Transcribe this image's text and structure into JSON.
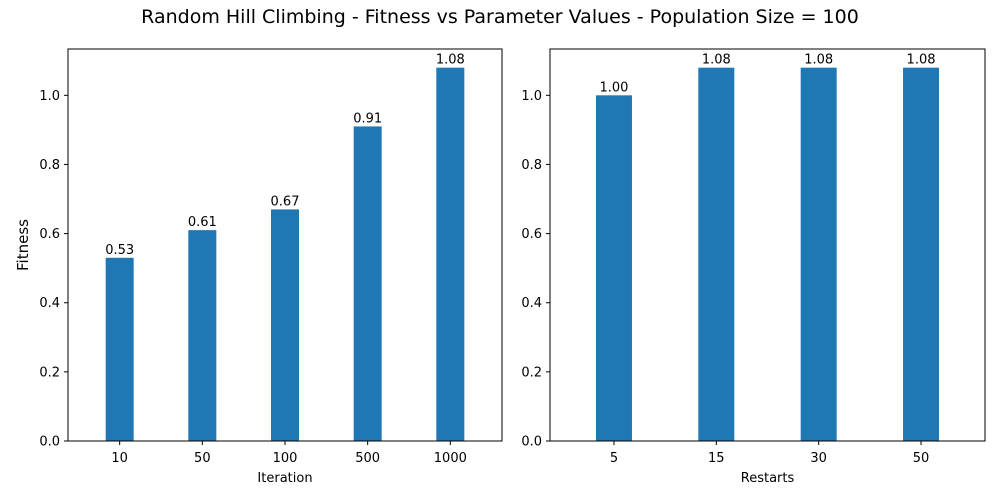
{
  "figure": {
    "suptitle": "Random Hill Climbing - Fitness vs Parameter Values - Population Size = 100"
  },
  "colors": {
    "bar": "#1f77b4",
    "axes": "#000000"
  },
  "chart_data": [
    {
      "type": "bar",
      "categories": [
        "10",
        "50",
        "100",
        "500",
        "1000"
      ],
      "values": [
        0.53,
        0.61,
        0.67,
        0.91,
        1.08
      ],
      "data_labels": [
        "0.53",
        "0.61",
        "0.67",
        "0.91",
        "1.08"
      ],
      "xlabel": "Iteration",
      "ylabel": "Fitness",
      "ylim": [
        0,
        1.134
      ],
      "yticks": [
        0.0,
        0.2,
        0.4,
        0.6,
        0.8,
        1.0
      ],
      "ytick_labels": [
        "0.0",
        "0.2",
        "0.4",
        "0.6",
        "0.8",
        "1.0"
      ],
      "grid": false
    },
    {
      "type": "bar",
      "categories": [
        "5",
        "15",
        "30",
        "50"
      ],
      "values": [
        1.0,
        1.08,
        1.08,
        1.08
      ],
      "data_labels": [
        "1.00",
        "1.08",
        "1.08",
        "1.08"
      ],
      "xlabel": "Restarts",
      "ylabel": "",
      "ylim": [
        0,
        1.134
      ],
      "yticks": [
        0.0,
        0.2,
        0.4,
        0.6,
        0.8,
        1.0
      ],
      "ytick_labels": [
        "0.0",
        "0.2",
        "0.4",
        "0.6",
        "0.8",
        "1.0"
      ],
      "grid": false
    }
  ]
}
